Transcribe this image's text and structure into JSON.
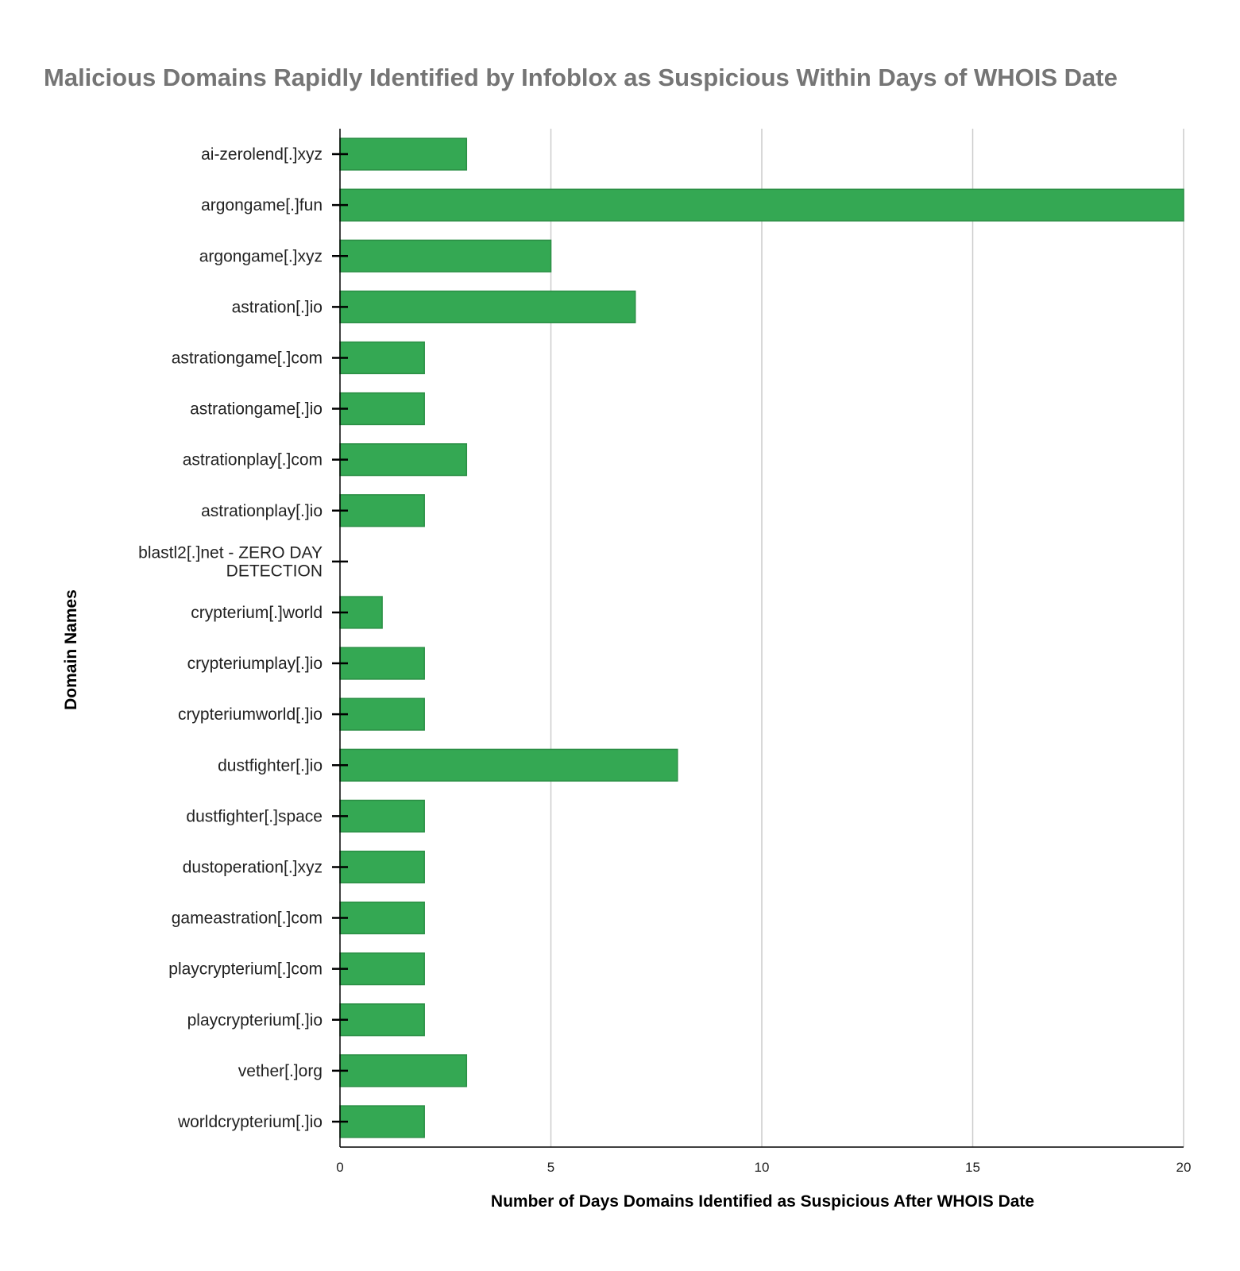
{
  "chart_data": {
    "type": "bar",
    "orientation": "horizontal",
    "title": "Malicious Domains Rapidly Identified by Infoblox as Suspicious Within Days of WHOIS Date",
    "xlabel": "Number of Days Domains Identified as Suspicious After WHOIS Date",
    "ylabel": "Domain Names",
    "categories": [
      "ai-zerolend[.]xyz",
      "argongame[.]fun",
      "argongame[.]xyz",
      "astration[.]io",
      "astrationgame[.]com",
      "astrationgame[.]io",
      "astrationplay[.]com",
      "astrationplay[.]io",
      "blastl2[.]net - ZERO DAY DETECTION",
      "crypterium[.]world",
      "crypteriumplay[.]io",
      "crypteriumworld[.]io",
      "dustfighter[.]io",
      "dustfighter[.]space",
      "dustoperation[.]xyz",
      "gameastration[.]com",
      "playcrypterium[.]com",
      "playcrypterium[.]io",
      "vether[.]org",
      "worldcrypterium[.]io"
    ],
    "category_lines": [
      [
        "ai-zerolend[.]xyz"
      ],
      [
        "argongame[.]fun"
      ],
      [
        "argongame[.]xyz"
      ],
      [
        "astration[.]io"
      ],
      [
        "astrationgame[.]com"
      ],
      [
        "astrationgame[.]io"
      ],
      [
        "astrationplay[.]com"
      ],
      [
        "astrationplay[.]io"
      ],
      [
        "blastl2[.]net - ZERO DAY",
        "DETECTION"
      ],
      [
        "crypterium[.]world"
      ],
      [
        "crypteriumplay[.]io"
      ],
      [
        "crypteriumworld[.]io"
      ],
      [
        "dustfighter[.]io"
      ],
      [
        "dustfighter[.]space"
      ],
      [
        "dustoperation[.]xyz"
      ],
      [
        "gameastration[.]com"
      ],
      [
        "playcrypterium[.]com"
      ],
      [
        "playcrypterium[.]io"
      ],
      [
        "vether[.]org"
      ],
      [
        "worldcrypterium[.]io"
      ]
    ],
    "values": [
      3,
      20,
      5,
      7,
      2,
      2,
      3,
      2,
      0,
      1,
      2,
      2,
      8,
      2,
      2,
      2,
      2,
      2,
      3,
      2
    ],
    "xlim": [
      0,
      20
    ],
    "xticks": [
      0,
      5,
      10,
      15,
      20
    ],
    "grid": "vertical",
    "legend": "none",
    "bar_color": "#34a853",
    "bar_edge_color": "#2b8f45",
    "grid_color": "#cccccc",
    "title_color": "#757575"
  }
}
